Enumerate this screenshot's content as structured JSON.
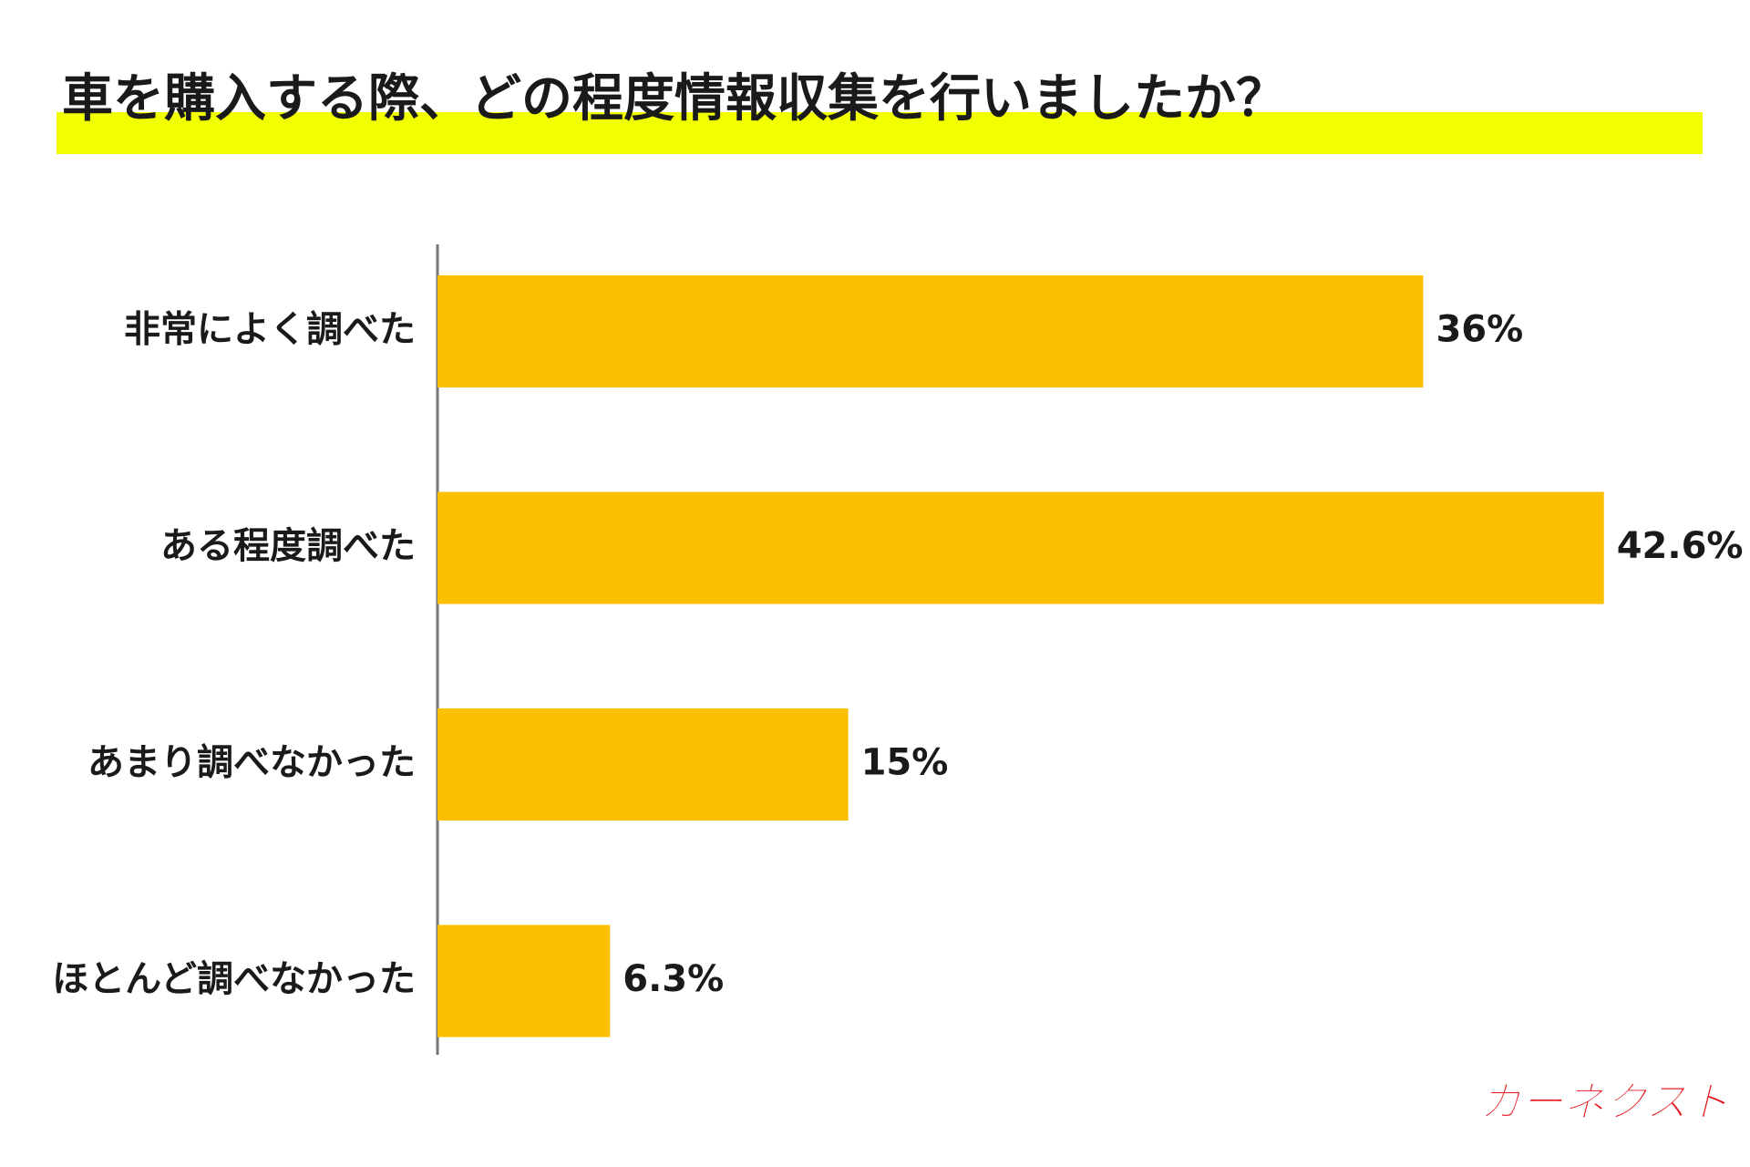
{
  "chart_data": {
    "type": "bar",
    "orientation": "horizontal",
    "title": "車を購入する際、どの程度情報収集を行いましたか？",
    "categories": [
      "非常によく調べた",
      "ある程度調べた",
      "あまり調べなかった",
      "ほとんど調べなかった"
    ],
    "values": [
      36,
      42.6,
      15,
      6.3
    ],
    "value_labels": [
      "36%",
      "42.6%",
      "15%",
      "6.3%"
    ],
    "color": "#fdc000",
    "logo": "カーネクスト"
  }
}
